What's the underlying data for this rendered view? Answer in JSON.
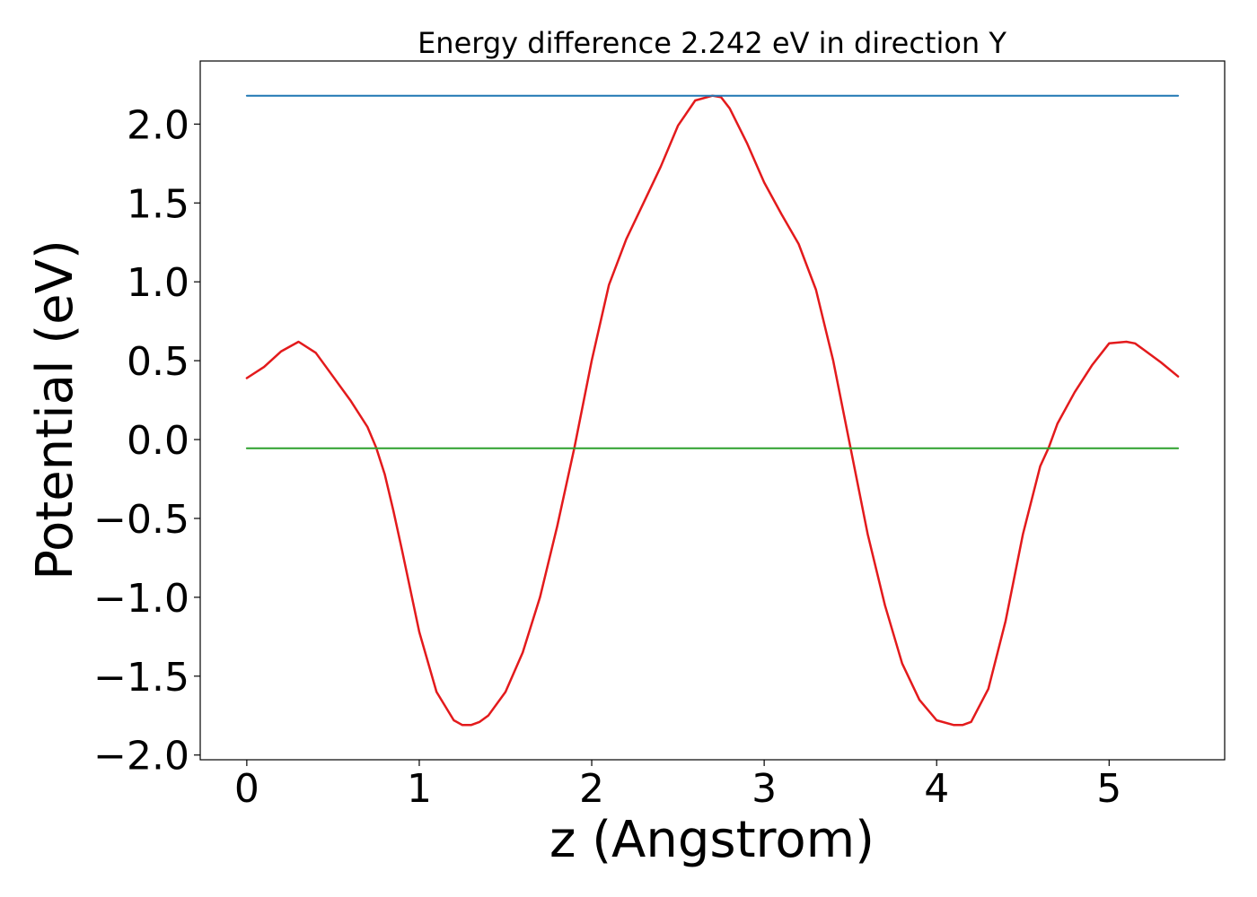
{
  "chart_data": {
    "type": "line",
    "title": "Energy difference 2.242 eV in direction Y",
    "xlabel": "z (Angstrom)",
    "ylabel": "Potential (eV)",
    "xlim": [
      -0.27,
      5.67
    ],
    "ylim": [
      -2.03,
      2.4
    ],
    "xticks": [
      0,
      1,
      2,
      3,
      4,
      5
    ],
    "yticks": [
      -2.0,
      -1.5,
      -1.0,
      -0.5,
      0.0,
      0.5,
      1.0,
      1.5,
      2.0
    ],
    "xtick_labels": [
      "0",
      "1",
      "2",
      "3",
      "4",
      "5"
    ],
    "ytick_labels": [
      "−2.0",
      "−1.5",
      "−1.0",
      "−0.5",
      "0.0",
      "0.5",
      "1.0",
      "1.5",
      "2.0"
    ],
    "grid": false,
    "series": [
      {
        "color": "#e31a1c",
        "x": [
          0.0,
          0.1,
          0.2,
          0.3,
          0.4,
          0.5,
          0.6,
          0.7,
          0.75,
          0.8,
          0.85,
          0.9,
          1.0,
          1.1,
          1.2,
          1.25,
          1.3,
          1.35,
          1.4,
          1.5,
          1.6,
          1.7,
          1.8,
          1.9,
          2.0,
          2.1,
          2.2,
          2.3,
          2.4,
          2.5,
          2.6,
          2.7,
          2.75,
          2.8,
          2.9,
          3.0,
          3.1,
          3.2,
          3.3,
          3.4,
          3.5,
          3.6,
          3.7,
          3.8,
          3.9,
          4.0,
          4.1,
          4.15,
          4.2,
          4.3,
          4.4,
          4.5,
          4.6,
          4.65,
          4.7,
          4.8,
          4.9,
          5.0,
          5.1,
          5.15,
          5.2,
          5.3,
          5.4
        ],
        "y": [
          0.39,
          0.46,
          0.56,
          0.62,
          0.55,
          0.4,
          0.25,
          0.08,
          -0.05,
          -0.22,
          -0.45,
          -0.7,
          -1.22,
          -1.6,
          -1.78,
          -1.81,
          -1.81,
          -1.79,
          -1.75,
          -1.6,
          -1.35,
          -1.0,
          -0.55,
          -0.05,
          0.5,
          0.98,
          1.27,
          1.5,
          1.73,
          1.99,
          2.15,
          2.18,
          2.17,
          2.1,
          1.88,
          1.63,
          1.43,
          1.24,
          0.95,
          0.5,
          -0.05,
          -0.6,
          -1.05,
          -1.42,
          -1.65,
          -1.78,
          -1.81,
          -1.81,
          -1.79,
          -1.58,
          -1.15,
          -0.6,
          -0.17,
          -0.05,
          0.1,
          0.3,
          0.47,
          0.61,
          0.62,
          0.61,
          0.57,
          0.49,
          0.4
        ],
        "line_width": 2.5
      },
      {
        "color": "#1f77b4",
        "x": [
          0.0,
          5.4
        ],
        "y": [
          2.18,
          2.18
        ],
        "line_width": 2
      },
      {
        "color": "#2ca02c",
        "x": [
          0.0,
          5.4
        ],
        "y": [
          -0.055,
          -0.055
        ],
        "line_width": 2
      }
    ]
  }
}
